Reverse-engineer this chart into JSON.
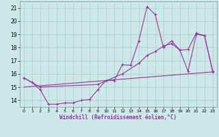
{
  "background_color": "#cce8e8",
  "grid_color": "#aacccc",
  "line_color": "#993399",
  "xlabel": "Windchill (Refroidissement éolien,°C)",
  "x_ticks": [
    0,
    1,
    2,
    3,
    4,
    5,
    6,
    7,
    8,
    9,
    10,
    11,
    12,
    13,
    14,
    15,
    16,
    17,
    18,
    19,
    20,
    21,
    22,
    23
  ],
  "y_ticks": [
    14,
    15,
    16,
    17,
    18,
    19,
    20,
    21
  ],
  "ylim": [
    13.5,
    21.5
  ],
  "xlim": [
    -0.5,
    23.5
  ],
  "line1_x": [
    0,
    1,
    2,
    3,
    4,
    5,
    6,
    7,
    8,
    9,
    10,
    11,
    12,
    13,
    14,
    15,
    16,
    17,
    18,
    19,
    20,
    21,
    22,
    23
  ],
  "line1_y": [
    15.7,
    15.35,
    14.8,
    13.7,
    13.7,
    13.8,
    13.8,
    14.0,
    14.05,
    14.8,
    15.5,
    15.5,
    16.7,
    16.65,
    18.5,
    21.1,
    20.5,
    18.0,
    18.5,
    17.8,
    16.2,
    19.0,
    18.9,
    16.2
  ],
  "line2_x": [
    0,
    2,
    9,
    12,
    14,
    15,
    16,
    17,
    18,
    19,
    20,
    21,
    22,
    23
  ],
  "line2_y": [
    15.7,
    15.0,
    15.2,
    16.0,
    16.8,
    17.4,
    17.7,
    18.1,
    18.3,
    17.8,
    17.85,
    19.1,
    18.9,
    16.15
  ],
  "line3_x": [
    0,
    23
  ],
  "line3_y": [
    15.0,
    16.15
  ]
}
